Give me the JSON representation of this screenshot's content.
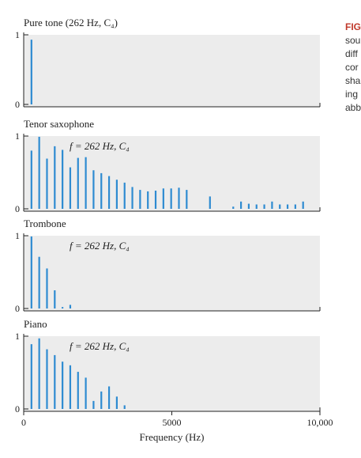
{
  "caption_fragments": [
    "FIG",
    "sou",
    "diff",
    "cor",
    "sha",
    "ing",
    "abb"
  ],
  "colors": {
    "bar": "#2e8bd1",
    "panel": "#ececec",
    "axis": "#222222",
    "caption_head": "#c0392b"
  },
  "chart_data": [
    {
      "type": "bar",
      "title": "Pure tone (262 Hz, C₄)",
      "annotation": "",
      "xlim": [
        0,
        10000
      ],
      "ylim": [
        0,
        1
      ],
      "yticks": [
        "0",
        "1"
      ],
      "harmonics_hz": [
        262
      ],
      "amplitudes": [
        0.93
      ]
    },
    {
      "type": "bar",
      "title": "Tenor saxophone",
      "annotation": "f = 262 Hz, C₄",
      "xlim": [
        0,
        10000
      ],
      "ylim": [
        0,
        1
      ],
      "yticks": [
        "0",
        "1"
      ],
      "harmonics_hz": [
        262,
        524,
        786,
        1048,
        1310,
        1572,
        1834,
        2096,
        2358,
        2620,
        2882,
        3144,
        3406,
        3668,
        3930,
        4192,
        4454,
        4716,
        4978,
        5240,
        5502,
        6288,
        7074,
        7336,
        7598,
        7860,
        8122,
        8384,
        8646,
        8908,
        9170,
        9432
      ],
      "amplitudes": [
        0.8,
        0.99,
        0.69,
        0.86,
        0.81,
        0.57,
        0.7,
        0.71,
        0.53,
        0.49,
        0.45,
        0.4,
        0.36,
        0.3,
        0.26,
        0.24,
        0.25,
        0.28,
        0.28,
        0.29,
        0.26,
        0.17,
        0.03,
        0.1,
        0.07,
        0.06,
        0.06,
        0.1,
        0.06,
        0.06,
        0.06,
        0.1
      ]
    },
    {
      "type": "bar",
      "title": "Trombone",
      "annotation": "f = 262 Hz, C₄",
      "xlim": [
        0,
        10000
      ],
      "ylim": [
        0,
        1
      ],
      "yticks": [
        "0",
        "1"
      ],
      "harmonics_hz": [
        262,
        524,
        786,
        1048,
        1310,
        1572
      ],
      "amplitudes": [
        0.99,
        0.71,
        0.55,
        0.25,
        0.02,
        0.05
      ]
    },
    {
      "type": "bar",
      "title": "Piano",
      "annotation": "f = 262 Hz, C₄",
      "xlim": [
        0,
        10000
      ],
      "ylim": [
        0,
        1
      ],
      "yticks": [
        "0",
        "1"
      ],
      "harmonics_hz": [
        262,
        524,
        786,
        1048,
        1310,
        1572,
        1834,
        2096,
        2358,
        2620,
        2882,
        3144,
        3406
      ],
      "amplitudes": [
        0.89,
        0.97,
        0.82,
        0.74,
        0.65,
        0.6,
        0.51,
        0.43,
        0.11,
        0.24,
        0.31,
        0.17,
        0.05
      ],
      "xticks": [
        {
          "value": 0,
          "label": "0"
        },
        {
          "value": 5000,
          "label": "5000"
        },
        {
          "value": 10000,
          "label": "10,000"
        }
      ],
      "xlabel": "Frequency (Hz)"
    }
  ]
}
